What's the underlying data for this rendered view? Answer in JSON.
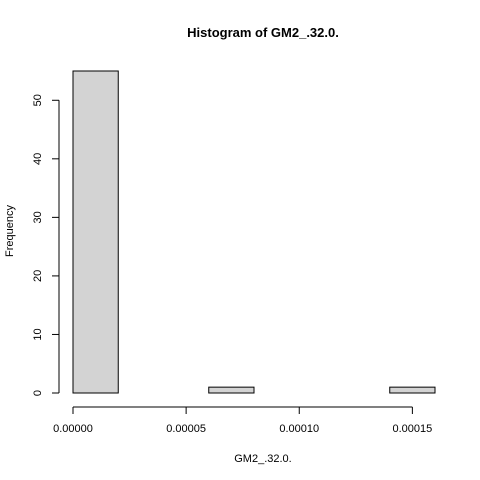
{
  "chart_data": {
    "type": "bar",
    "title": "Histogram of GM2_.32.0.",
    "xlabel": "GM2_.32.0.",
    "ylabel": "Frequency",
    "bins": [
      {
        "start": 0.0,
        "end": 2e-05,
        "count": 55
      },
      {
        "start": 2e-05,
        "end": 4e-05,
        "count": 0
      },
      {
        "start": 4e-05,
        "end": 6e-05,
        "count": 0
      },
      {
        "start": 6e-05,
        "end": 8e-05,
        "count": 1
      },
      {
        "start": 8e-05,
        "end": 0.0001,
        "count": 0
      },
      {
        "start": 0.0001,
        "end": 0.00012,
        "count": 0
      },
      {
        "start": 0.00012,
        "end": 0.00014,
        "count": 0
      },
      {
        "start": 0.00014,
        "end": 0.00016,
        "count": 1
      }
    ],
    "xticks": [
      0.0,
      5e-05,
      0.0001,
      0.00015
    ],
    "xtick_labels": [
      "0.00000",
      "0.00005",
      "0.00010",
      "0.00015"
    ],
    "yticks": [
      0,
      10,
      20,
      30,
      40,
      50
    ],
    "ytick_labels": [
      "0",
      "10",
      "20",
      "30",
      "40",
      "50"
    ],
    "xlim": [
      0.0,
      0.00016
    ],
    "ylim": [
      0,
      55
    ],
    "grid": false,
    "bar_color": "#d3d3d3"
  }
}
